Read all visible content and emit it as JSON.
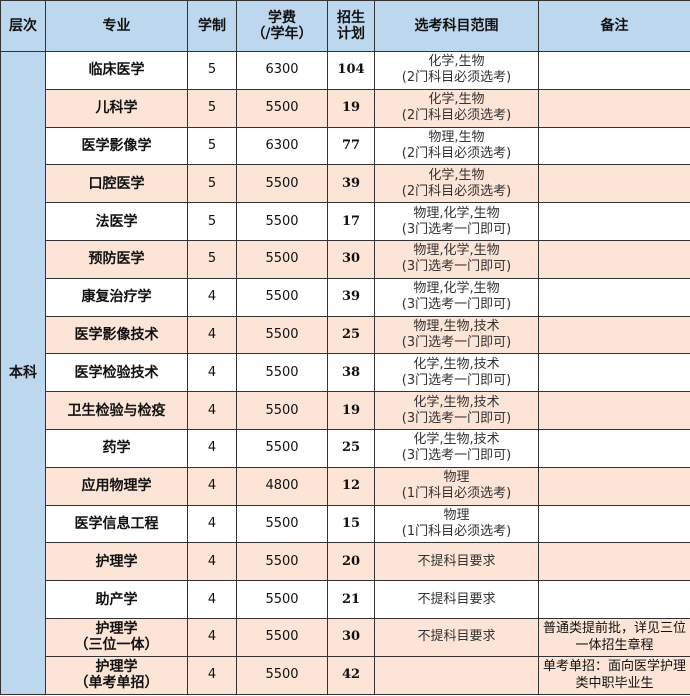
{
  "headers": [
    "层次",
    "专业",
    "学制",
    "学费\n（/学年）",
    "招生\n计划",
    "选考科目范围",
    "备注"
  ],
  "level": "本科",
  "colors": {
    "header": "#bdd7ee",
    "peach": "#fce4d6",
    "white": "#ffffff"
  },
  "rows": [
    {
      "major": "临床医学",
      "years": "5",
      "fee": "6300",
      "plan": "104",
      "subjects": "化学,生物\n(2门科目必须选考)",
      "note": "",
      "bg": "white"
    },
    {
      "major": "儿科学",
      "years": "5",
      "fee": "5500",
      "plan": "19",
      "subjects": "化学,生物\n(2门科目必须选考)",
      "note": "",
      "bg": "peach"
    },
    {
      "major": "医学影像学",
      "years": "5",
      "fee": "6300",
      "plan": "77",
      "subjects": "物理,生物\n(2门科目必须选考)",
      "note": "",
      "bg": "white"
    },
    {
      "major": "口腔医学",
      "years": "5",
      "fee": "5500",
      "plan": "39",
      "subjects": "化学,生物\n(2门科目必须选考)",
      "note": "",
      "bg": "peach"
    },
    {
      "major": "法医学",
      "years": "5",
      "fee": "5500",
      "plan": "17",
      "subjects": "物理,化学,生物\n(3门选考一门即可)",
      "note": "",
      "bg": "white"
    },
    {
      "major": "预防医学",
      "years": "5",
      "fee": "5500",
      "plan": "30",
      "subjects": "物理,化学,生物\n(3门选考一门即可)",
      "note": "",
      "bg": "peach"
    },
    {
      "major": "康复治疗学",
      "years": "4",
      "fee": "5500",
      "plan": "39",
      "subjects": "物理,化学,生物\n(3门选考一门即可)",
      "note": "",
      "bg": "white"
    },
    {
      "major": "医学影像技术",
      "years": "4",
      "fee": "5500",
      "plan": "25",
      "subjects": "物理,生物,技术\n(3门选考一门即可)",
      "note": "",
      "bg": "peach"
    },
    {
      "major": "医学检验技术",
      "years": "4",
      "fee": "5500",
      "plan": "38",
      "subjects": "化学,生物,技术\n(3门选考一门即可)",
      "note": "",
      "bg": "white"
    },
    {
      "major": "卫生检验与检疫",
      "years": "4",
      "fee": "5500",
      "plan": "19",
      "subjects": "化学,生物,技术\n(3门选考一门即可)",
      "note": "",
      "bg": "peach"
    },
    {
      "major": "药学",
      "years": "4",
      "fee": "5500",
      "plan": "25",
      "subjects": "化学,生物,技术\n(3门选考一门即可)",
      "note": "",
      "bg": "white"
    },
    {
      "major": "应用物理学",
      "years": "4",
      "fee": "4800",
      "plan": "12",
      "subjects": "物理\n(1门科目必须选考)",
      "note": "",
      "bg": "peach"
    },
    {
      "major": "医学信息工程",
      "years": "4",
      "fee": "5500",
      "plan": "15",
      "subjects": "物理\n(1门科目必须选考)",
      "note": "",
      "bg": "white"
    },
    {
      "major": "护理学",
      "years": "4",
      "fee": "5500",
      "plan": "20",
      "subjects": "不提科目要求",
      "note": "",
      "bg": "peach"
    },
    {
      "major": "助产学",
      "years": "4",
      "fee": "5500",
      "plan": "21",
      "subjects": "不提科目要求",
      "note": "",
      "bg": "white"
    },
    {
      "major": "护理学\n（三位一体）",
      "years": "4",
      "fee": "5500",
      "plan": "30",
      "subjects": "不提科目要求",
      "note": "普通类提前批，详见三位一体招生章程",
      "bg": "peach"
    },
    {
      "major": "护理学\n（单考单招）",
      "years": "4",
      "fee": "5500",
      "plan": "42",
      "subjects": "",
      "note": "单考单招：面向医学护理类中职毕业生",
      "bg": "peach"
    }
  ]
}
